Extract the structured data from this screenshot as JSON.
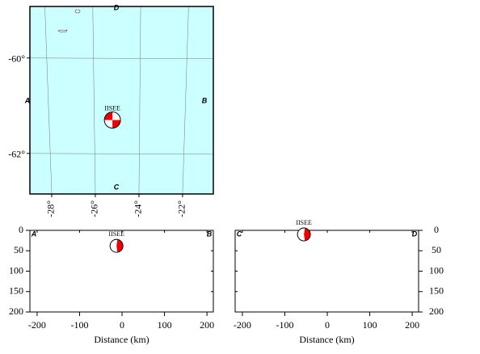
{
  "map": {
    "lonlim": [
      -29,
      -20.59
    ],
    "latlim": [
      -62.85,
      -58.92
    ],
    "lon_ticks": [
      {
        "value": -28,
        "label": "-28°"
      },
      {
        "value": -26,
        "label": "-26°"
      },
      {
        "value": -24,
        "label": "-24°"
      },
      {
        "value": -22,
        "label": "-22°"
      }
    ],
    "lat_ticks": [
      {
        "value": -60,
        "label": "-60°"
      },
      {
        "value": -62,
        "label": "-62°"
      }
    ],
    "profiles": {
      "a": "A",
      "b": "B",
      "c": "C",
      "d": "D"
    },
    "event": {
      "label": "IISEE",
      "lon": -25.2,
      "lat": -61.3
    }
  },
  "chart_data": [
    {
      "type": "section",
      "xlabel": "Distance (km)",
      "start": "A",
      "end": "B",
      "xlim": [
        -217,
        215
      ],
      "ylim": [
        0,
        200
      ],
      "xticks": [
        -200,
        -100,
        0,
        100,
        200
      ],
      "yticks": [
        0,
        50,
        100,
        150,
        200
      ],
      "event": {
        "label": "IISEE",
        "x": -13,
        "y": 38
      }
    },
    {
      "type": "section",
      "xlabel": "Distance (km)",
      "start": "C",
      "end": "D",
      "xlim": [
        -217,
        215
      ],
      "ylim": [
        0,
        200
      ],
      "xticks": [
        -200,
        -100,
        0,
        100,
        200
      ],
      "yticks": [
        0,
        50,
        100,
        150,
        200
      ],
      "event": {
        "label": "IISEE",
        "x": -55,
        "y": 10
      }
    }
  ]
}
